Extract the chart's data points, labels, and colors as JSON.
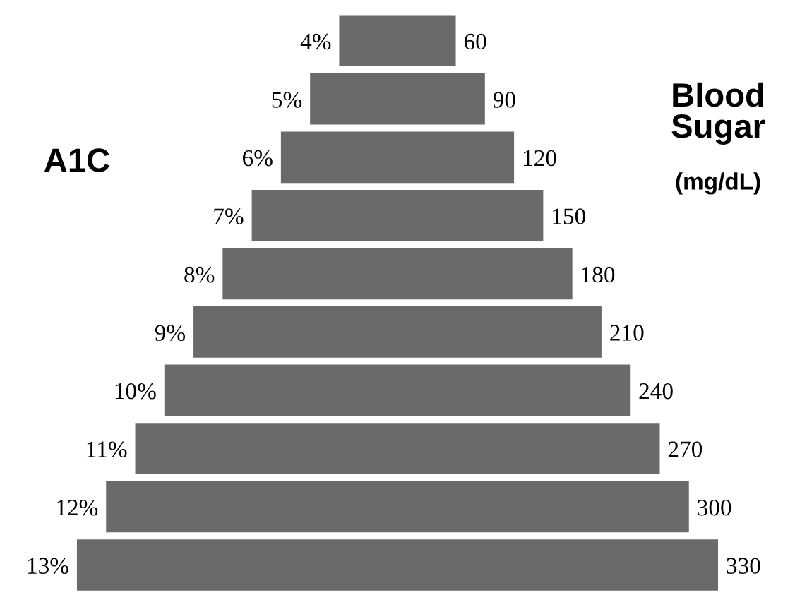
{
  "chart_data": {
    "type": "other",
    "ylabel": "A1C",
    "y2label": "Blood\nSugar\n(mg/dL)",
    "categories": [
      "4%",
      "5%",
      "6%",
      "7%",
      "8%",
      "9%",
      "10%",
      "11%",
      "12%",
      "13%"
    ],
    "values": [
      60,
      90,
      120,
      150,
      180,
      210,
      240,
      270,
      300,
      330
    ],
    "color": "#6a6a6a",
    "data_labels": true
  }
}
